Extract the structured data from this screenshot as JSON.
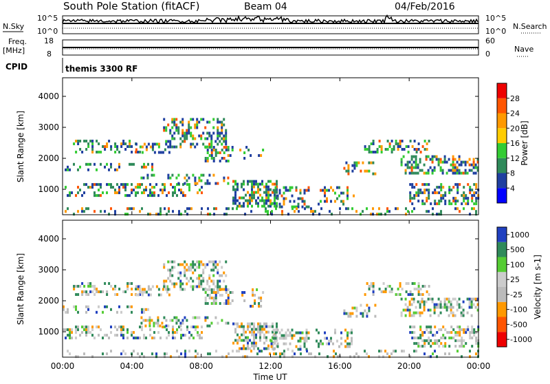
{
  "header": {
    "title": "South Pole Station (fitACF)",
    "beam": "Beam 04",
    "date": "04/Feb/2016"
  },
  "summary": {
    "nsky_label": "N.Sky",
    "nsearch_label": "N.Search",
    "log_top": "10^5",
    "log_bottom": "10^0",
    "freq_label": "Freq.",
    "freq_unit": "[MHz]",
    "freq_ticks": [
      "18",
      "8"
    ],
    "nave_label": "Nave",
    "nave_ticks": [
      "60",
      "0"
    ],
    "cpid_label": "CPID",
    "cpid_value": "themis 3300 RF"
  },
  "colors": {
    "power": [
      "#0000ff",
      "#1f3fa0",
      "#2f8a5a",
      "#33cc33",
      "#ffcc00",
      "#ff9900",
      "#ff5500",
      "#ee0000"
    ],
    "velocity": [
      "#ee0000",
      "#ff5500",
      "#ff9900",
      "#bbbbbb",
      "#cccccc",
      "#55cc33",
      "#2f8a5a",
      "#2040c0"
    ]
  },
  "chart_data": [
    {
      "type": "heatmap",
      "name": "power-panel",
      "ylabel": "Slant Range [km]",
      "yticks": [
        "1000",
        "2000",
        "3000",
        "4000"
      ],
      "ylim": [
        180,
        4600
      ],
      "xlim": [
        0,
        24
      ],
      "colorbar": {
        "label": "Power [dB]",
        "ticks": [
          "4",
          "8",
          "12",
          "16",
          "20",
          "24",
          "28"
        ],
        "range": [
          0,
          32
        ]
      }
    },
    {
      "type": "heatmap",
      "name": "velocity-panel",
      "ylabel": "Slant Range [km]",
      "yticks": [
        "1000",
        "2000",
        "3000",
        "4000"
      ],
      "ylim": [
        180,
        4600
      ],
      "xlim": [
        0,
        24
      ],
      "colorbar": {
        "label": "Velocity [m s-1]",
        "ticks": [
          "-1000",
          "-500",
          "-100",
          "-25",
          "25",
          "100",
          "500",
          "1000"
        ]
      },
      "xlabel": "Time UT",
      "xticks": [
        "00:00",
        "04:00",
        "08:00",
        "12:00",
        "16:00",
        "20:00",
        "00:00"
      ]
    }
  ]
}
